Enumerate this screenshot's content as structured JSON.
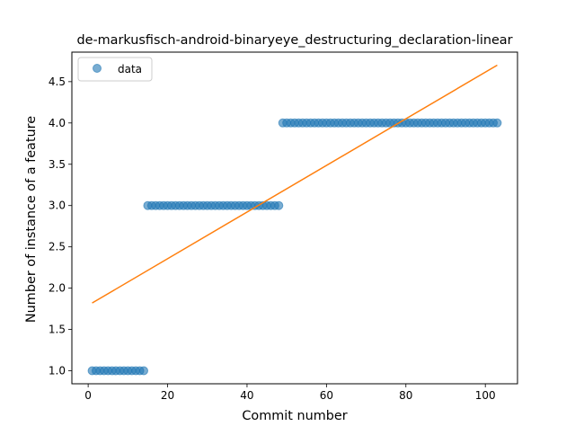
{
  "chart_data": {
    "type": "scatter",
    "title": "de-markusfisch-android-binaryeye_destructuring_declaration-linear",
    "xlabel": "Commit number",
    "ylabel": "Number of instance of a feature",
    "xlim": [
      -4.1,
      108.1
    ],
    "ylim": [
      0.8425,
      4.8575
    ],
    "xticks": [
      0,
      20,
      40,
      60,
      80,
      100
    ],
    "xtick_labels": [
      "0",
      "20",
      "40",
      "60",
      "80",
      "100"
    ],
    "yticks": [
      1.0,
      1.5,
      2.0,
      2.5,
      3.0,
      3.5,
      4.0,
      4.5
    ],
    "ytick_labels": [
      "1.0",
      "1.5",
      "2.0",
      "2.5",
      "3.0",
      "3.5",
      "4.0",
      "4.5"
    ],
    "legend_position": "upper-left",
    "grid": false,
    "series": [
      {
        "name": "data",
        "kind": "scatter",
        "color": "#1f77b4",
        "segments": [
          {
            "x_start": 1,
            "x_end": 14,
            "y": 1.0
          },
          {
            "x_start": 15,
            "x_end": 48,
            "y": 3.0
          },
          {
            "x_start": 49,
            "x_end": 103,
            "y": 4.0
          }
        ]
      },
      {
        "kind": "line",
        "color": "#ff7f0e",
        "x": [
          1,
          103
        ],
        "y": [
          1.82,
          4.7
        ]
      }
    ]
  }
}
